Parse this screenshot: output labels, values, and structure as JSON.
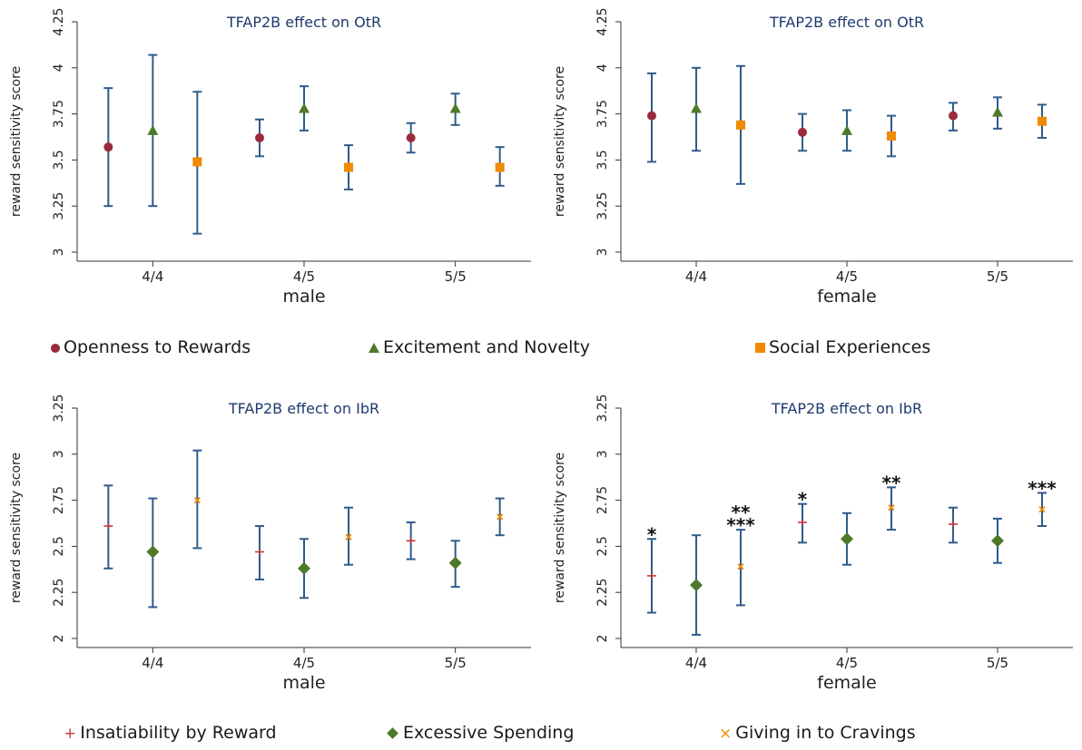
{
  "legend_top": [
    {
      "label": "Openness to Rewards",
      "shape": "circle",
      "color": "#9b2a3c"
    },
    {
      "label": "Excitement and Novelty",
      "shape": "triangle",
      "color": "#4d7a2a"
    },
    {
      "label": "Social Experiences",
      "shape": "square",
      "color": "#f08a00"
    }
  ],
  "legend_bottom": [
    {
      "label": "Insatiability by Reward",
      "shape": "plus",
      "glyph": "+",
      "color": "#c23b3b"
    },
    {
      "label": "Excessive Spending",
      "shape": "diamond",
      "color": "#4d7a2a"
    },
    {
      "label": "Giving in to Cravings",
      "shape": "x",
      "glyph": "×",
      "color": "#f08a00"
    }
  ],
  "colors": {
    "errorbar": "#2f5b8a",
    "title": "#1f3a6e",
    "axis": "#333333"
  },
  "chart_data": [
    {
      "type": "errorbar",
      "title": "TFAP2B effect on OtR",
      "xlabel": "male",
      "ylabel": "reward sensitivity score",
      "ylim": [
        3,
        4.25
      ],
      "yticks": [
        "3",
        "3.25",
        "3.5",
        "3.75",
        "4",
        "4.25"
      ],
      "categories": [
        "4/4",
        "4/5",
        "5/5"
      ],
      "series": [
        {
          "name": "Openness to Rewards",
          "shape": "circle",
          "color": "#9b2a3c",
          "values": [
            3.57,
            3.62,
            3.62
          ],
          "lower": [
            3.25,
            3.52,
            3.54
          ],
          "upper": [
            3.89,
            3.72,
            3.7
          ]
        },
        {
          "name": "Excitement and Novelty",
          "shape": "triangle",
          "color": "#4d7a2a",
          "values": [
            3.66,
            3.78,
            3.78
          ],
          "lower": [
            3.25,
            3.66,
            3.69
          ],
          "upper": [
            4.07,
            3.9,
            3.86
          ]
        },
        {
          "name": "Social Experiences",
          "shape": "square",
          "color": "#f08a00",
          "values": [
            3.49,
            3.46,
            3.46
          ],
          "lower": [
            3.1,
            3.34,
            3.36
          ],
          "upper": [
            3.87,
            3.58,
            3.57
          ]
        }
      ],
      "annotations": []
    },
    {
      "type": "errorbar",
      "title": "TFAP2B effect on OtR",
      "xlabel": "female",
      "ylabel": "reward sensitivity score",
      "ylim": [
        3,
        4.25
      ],
      "yticks": [
        "3",
        "3.25",
        "3.5",
        "3.75",
        "4",
        "4.25"
      ],
      "categories": [
        "4/4",
        "4/5",
        "5/5"
      ],
      "series": [
        {
          "name": "Openness to Rewards",
          "shape": "circle",
          "color": "#9b2a3c",
          "values": [
            3.74,
            3.65,
            3.74
          ],
          "lower": [
            3.49,
            3.55,
            3.66
          ],
          "upper": [
            3.97,
            3.75,
            3.81
          ]
        },
        {
          "name": "Excitement and Novelty",
          "shape": "triangle",
          "color": "#4d7a2a",
          "values": [
            3.78,
            3.66,
            3.76
          ],
          "lower": [
            3.55,
            3.55,
            3.67
          ],
          "upper": [
            4.0,
            3.77,
            3.84
          ]
        },
        {
          "name": "Social Experiences",
          "shape": "square",
          "color": "#f08a00",
          "values": [
            3.69,
            3.63,
            3.71
          ],
          "lower": [
            3.37,
            3.52,
            3.62
          ],
          "upper": [
            4.01,
            3.74,
            3.8
          ]
        }
      ],
      "annotations": []
    },
    {
      "type": "errorbar",
      "title": "TFAP2B effect on IbR",
      "xlabel": "male",
      "ylabel": "reward sensitivity score",
      "ylim": [
        2,
        3.25
      ],
      "yticks": [
        "2",
        "2.25",
        "2.5",
        "2.75",
        "3",
        "3.25"
      ],
      "categories": [
        "4/4",
        "4/5",
        "5/5"
      ],
      "series": [
        {
          "name": "Insatiability by Reward",
          "shape": "plus",
          "color": "#c23b3b",
          "values": [
            2.61,
            2.47,
            2.53
          ],
          "lower": [
            2.38,
            2.32,
            2.43
          ],
          "upper": [
            2.83,
            2.61,
            2.63
          ]
        },
        {
          "name": "Excessive Spending",
          "shape": "diamond",
          "color": "#4d7a2a",
          "values": [
            2.47,
            2.38,
            2.41
          ],
          "lower": [
            2.17,
            2.22,
            2.28
          ],
          "upper": [
            2.76,
            2.54,
            2.53
          ]
        },
        {
          "name": "Giving in to Cravings",
          "shape": "x",
          "color": "#f08a00",
          "values": [
            2.75,
            2.55,
            2.66
          ],
          "lower": [
            2.49,
            2.4,
            2.56
          ],
          "upper": [
            3.02,
            2.71,
            2.76
          ]
        }
      ],
      "annotations": []
    },
    {
      "type": "errorbar",
      "title": "TFAP2B effect on IbR",
      "xlabel": "female",
      "ylabel": "reward sensitivity score",
      "ylim": [
        2,
        3.25
      ],
      "yticks": [
        "2",
        "2.25",
        "2.5",
        "2.75",
        "3",
        "3.25"
      ],
      "categories": [
        "4/4",
        "4/5",
        "5/5"
      ],
      "series": [
        {
          "name": "Insatiability by Reward",
          "shape": "plus",
          "color": "#c23b3b",
          "values": [
            2.34,
            2.63,
            2.62
          ],
          "lower": [
            2.14,
            2.52,
            2.52
          ],
          "upper": [
            2.54,
            2.73,
            2.71
          ]
        },
        {
          "name": "Excessive Spending",
          "shape": "diamond",
          "color": "#4d7a2a",
          "values": [
            2.29,
            2.54,
            2.53
          ],
          "lower": [
            2.02,
            2.4,
            2.41
          ],
          "upper": [
            2.56,
            2.68,
            2.65
          ]
        },
        {
          "name": "Giving in to Cravings",
          "shape": "x",
          "color": "#f08a00",
          "values": [
            2.39,
            2.71,
            2.7
          ],
          "lower": [
            2.18,
            2.59,
            2.61
          ],
          "upper": [
            2.59,
            2.82,
            2.79
          ]
        }
      ],
      "annotations": [
        {
          "category": "4/4",
          "series": "Insatiability by Reward",
          "lines": [
            "*"
          ]
        },
        {
          "category": "4/4",
          "series": "Giving in to Cravings",
          "lines": [
            "**",
            "***"
          ]
        },
        {
          "category": "4/5",
          "series": "Insatiability by Reward",
          "lines": [
            "*"
          ]
        },
        {
          "category": "4/5",
          "series": "Giving in to Cravings",
          "lines": [
            "**"
          ]
        },
        {
          "category": "5/5",
          "series": "Giving in to Cravings",
          "lines": [
            "***"
          ]
        }
      ]
    }
  ]
}
